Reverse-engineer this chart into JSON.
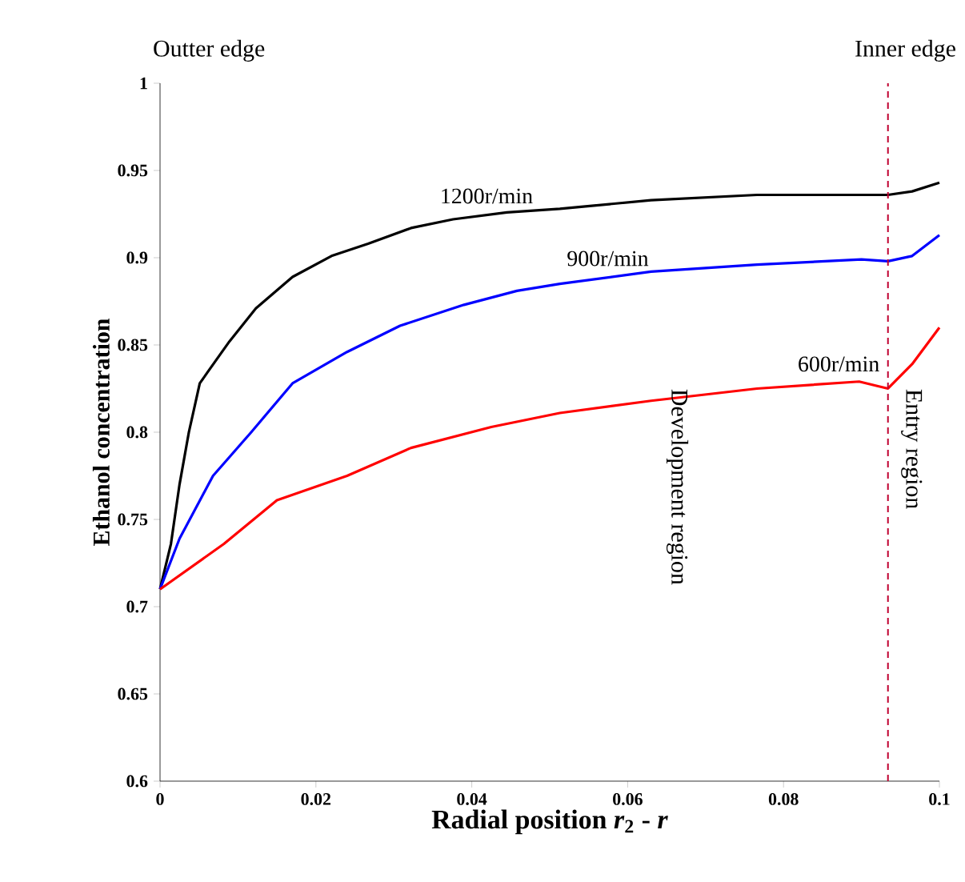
{
  "chart_data": {
    "type": "line",
    "xlabel": "Radial position *r*$_{2}$ - *r*",
    "ylabel": "Ethanol concentration",
    "xlim": [
      0,
      0.1
    ],
    "ylim": [
      0.6,
      1
    ],
    "xticks": [
      0,
      0.02,
      0.04,
      0.06,
      0.08,
      0.1
    ],
    "yticks": [
      0.6,
      0.65,
      0.7,
      0.75,
      0.8,
      0.85,
      0.9,
      0.95,
      1
    ],
    "grid": false,
    "legend": false,
    "marker": "none",
    "line_style": "solid",
    "series": [
      {
        "name": "1200r/min",
        "color": "#000000",
        "x": [
          0,
          0.0014,
          0.0025,
          0.0037,
          0.0051,
          0.0062,
          0.0089,
          0.0123,
          0.017,
          0.022,
          0.0267,
          0.0322,
          0.0376,
          0.0445,
          0.0513,
          0.063,
          0.0766,
          0.0934,
          0.0965,
          0.1
        ],
        "values": [
          0.71,
          0.736,
          0.77,
          0.8,
          0.828,
          0.835,
          0.852,
          0.871,
          0.889,
          0.901,
          0.908,
          0.917,
          0.922,
          0.926,
          0.928,
          0.933,
          0.936,
          0.936,
          0.938,
          0.943
        ]
      },
      {
        "name": "900r/min",
        "color": "#0000ff",
        "x": [
          0,
          0.0025,
          0.0068,
          0.0117,
          0.017,
          0.024,
          0.0308,
          0.039,
          0.0458,
          0.0513,
          0.063,
          0.0766,
          0.09,
          0.0934,
          0.0965,
          0.1
        ],
        "values": [
          0.71,
          0.739,
          0.775,
          0.8,
          0.828,
          0.846,
          0.861,
          0.873,
          0.881,
          0.885,
          0.892,
          0.896,
          0.899,
          0.898,
          0.901,
          0.913
        ]
      },
      {
        "name": "600r/min",
        "color": "#ff0000",
        "x": [
          0,
          0.0082,
          0.015,
          0.024,
          0.0322,
          0.0425,
          0.0513,
          0.063,
          0.0766,
          0.0897,
          0.0934,
          0.0965,
          0.1
        ],
        "values": [
          0.71,
          0.736,
          0.761,
          0.775,
          0.791,
          0.803,
          0.811,
          0.818,
          0.825,
          0.829,
          0.825,
          0.839,
          0.86
        ]
      }
    ],
    "ref_lines": [
      {
        "axis": "x",
        "value": 0.0934,
        "color": "#c00030",
        "line_style": "dashed"
      }
    ],
    "annotations": [
      "Outter edge",
      "Inner edge",
      "Development region",
      "Entry region"
    ]
  }
}
